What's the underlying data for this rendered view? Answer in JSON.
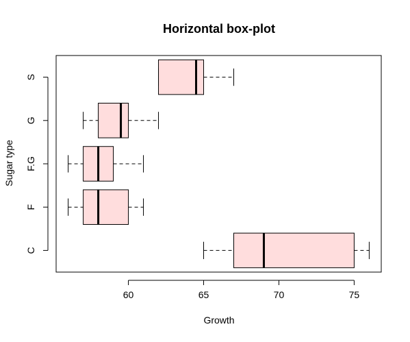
{
  "chart_data": {
    "type": "boxplot",
    "orientation": "horizontal",
    "title": "Horizontal box-plot",
    "xlabel": "Growth",
    "ylabel": "Sugar type",
    "xlim": [
      55.2,
      76.8
    ],
    "x_ticks": [
      60,
      65,
      70,
      75
    ],
    "categories": [
      "C",
      "F",
      "F.G",
      "G",
      "S"
    ],
    "boxes": [
      {
        "category": "C",
        "min": 65,
        "q1": 67,
        "median": 69,
        "q3": 75,
        "max": 76
      },
      {
        "category": "F",
        "min": 56,
        "q1": 57,
        "median": 58,
        "q3": 60,
        "max": 61
      },
      {
        "category": "F.G",
        "min": 56,
        "q1": 57,
        "median": 58,
        "q3": 59,
        "max": 61
      },
      {
        "category": "G",
        "min": 57,
        "q1": 58,
        "median": 59.5,
        "q3": 60,
        "max": 62
      },
      {
        "category": "S",
        "min": 62,
        "q1": 62,
        "median": 64.5,
        "q3": 65,
        "max": 67
      }
    ],
    "box_fill": "#ffdddd",
    "box_border": "#000000",
    "grid": false,
    "legend": "none"
  }
}
